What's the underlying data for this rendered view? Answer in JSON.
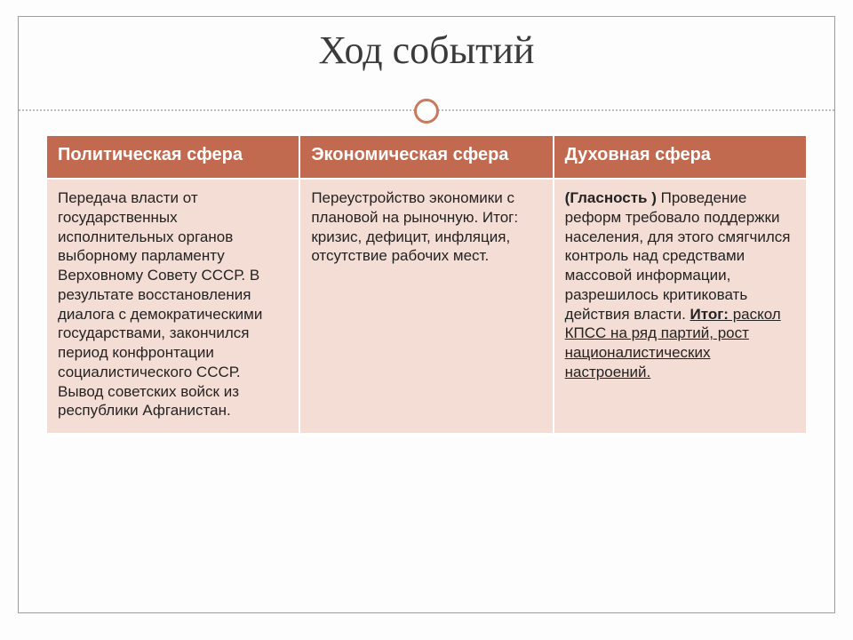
{
  "title": "Ход событий",
  "colors": {
    "header_bg": "#c16a4f",
    "header_text": "#ffffff",
    "cell_bg": "#f3ddd5",
    "cell_text": "#232323",
    "frame_border": "#9c9c9c",
    "ring_border": "#c87a60",
    "dotted_line": "#bdbdbd",
    "title_text": "#3b3b3b",
    "page_bg": "#fdfdfd"
  },
  "typography": {
    "title_font": "Georgia",
    "title_size_pt": 33,
    "header_size_pt": 15,
    "cell_size_pt": 13
  },
  "table": {
    "columns": [
      {
        "header": "Политическая сфера"
      },
      {
        "header": "Экономическая сфера"
      },
      {
        "header": "Духовная сфера"
      }
    ],
    "cells": {
      "political": "Передача власти от государственных исполнительных органов выборному парламенту Верховному Совету СССР.\n  В результате восстановления диалога с демократическими государствами, закончился период конфронтации социалистического СССР. Вывод советских войск из республики Афганистан.",
      "economic": "Переустройство экономики с плановой на рыночную. Итог: кризис, дефицит, инфляция, отсутствие рабочих мест.",
      "spiritual": {
        "lead_bold": "(Гласность )",
        "body_before": " Проведение реформ требовало поддержки населения, для этого смягчился контроль над средствами массовой информации, разрешилось критиковать действия власти. ",
        "outcome_label": "Итог:",
        "outcome_text": " раскол КПСС на ряд партий, рост националистических настроений."
      }
    }
  }
}
